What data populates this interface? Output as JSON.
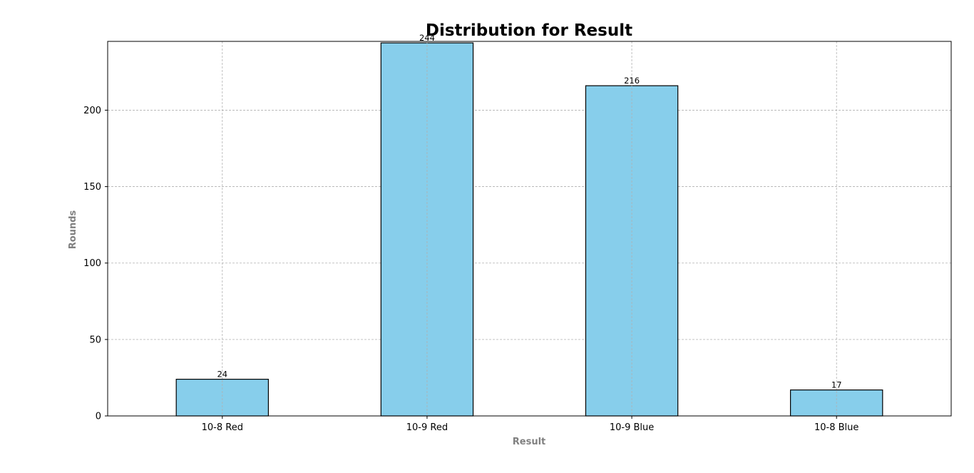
{
  "chart_data": {
    "type": "bar",
    "title": "Distribution for Result",
    "xlabel": "Result",
    "ylabel": "Rounds",
    "categories": [
      "10-8 Red",
      "10-9 Red",
      "10-9 Blue",
      "10-8 Blue"
    ],
    "values": [
      24,
      244,
      216,
      17
    ],
    "data_labels": [
      "24",
      "244",
      "216",
      "17"
    ],
    "y_ticks": [
      0,
      50,
      100,
      150,
      200
    ],
    "ylim": [
      0,
      245
    ],
    "grid": true,
    "bar_color": "#87CEEB",
    "bar_edge_color": "#000000",
    "axis_label_color": "#808080",
    "grid_color": "#b0b0b0"
  }
}
